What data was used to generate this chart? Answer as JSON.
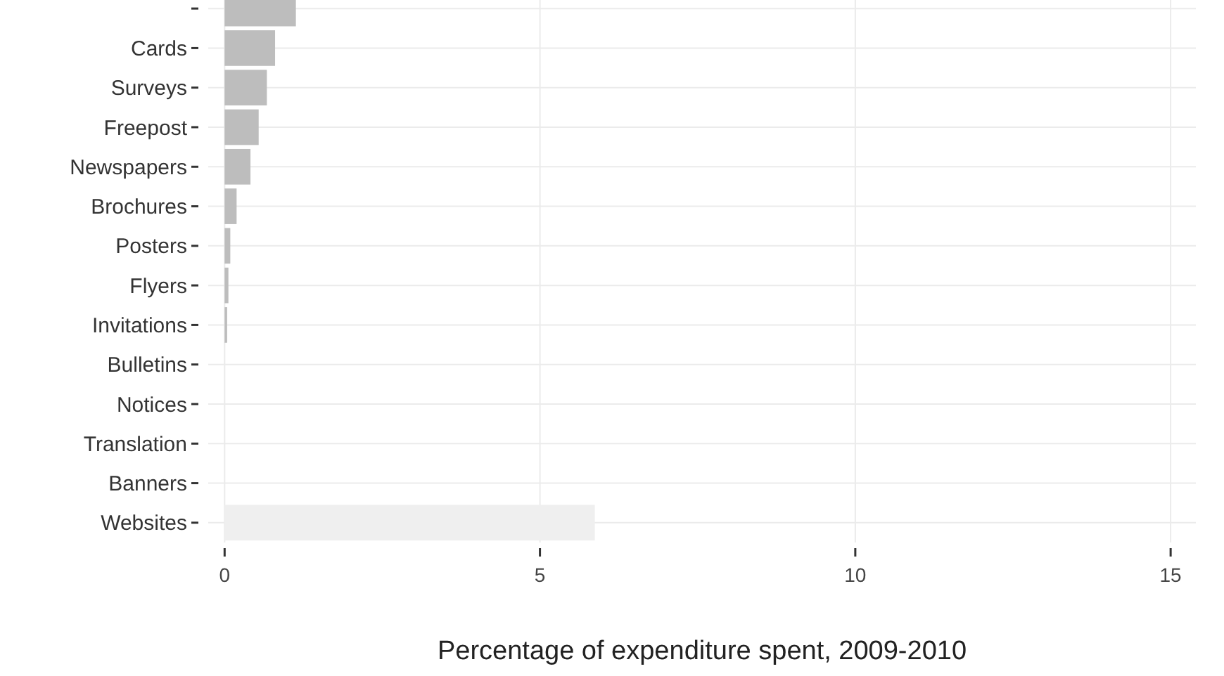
{
  "chart_data": {
    "type": "bar",
    "orientation": "horizontal",
    "xlabel": "Percentage of expenditure spent, 2009-2010",
    "categories": [
      null,
      "Cards",
      "Surveys",
      "Freepost",
      "Newspapers",
      "Brochures",
      "Posters",
      "Flyers",
      "Invitations",
      "Bulletins",
      "Notices",
      "Translation",
      "Banners",
      "Websites"
    ],
    "values": [
      1.13,
      0.8,
      0.67,
      0.54,
      0.41,
      0.19,
      0.09,
      0.06,
      0.04,
      0,
      0,
      0,
      0,
      5.87
    ],
    "colors": [
      "#bdbdbd",
      "#bdbdbd",
      "#bdbdbd",
      "#bdbdbd",
      "#bdbdbd",
      "#bdbdbd",
      "#bdbdbd",
      "#bdbdbd",
      "#bdbdbd",
      "#bdbdbd",
      "#bdbdbd",
      "#bdbdbd",
      "#bdbdbd",
      "#efefef"
    ],
    "xlim": [
      -0.26,
      15.4
    ],
    "xticks": [
      0,
      5,
      10,
      15
    ],
    "grid": true
  }
}
